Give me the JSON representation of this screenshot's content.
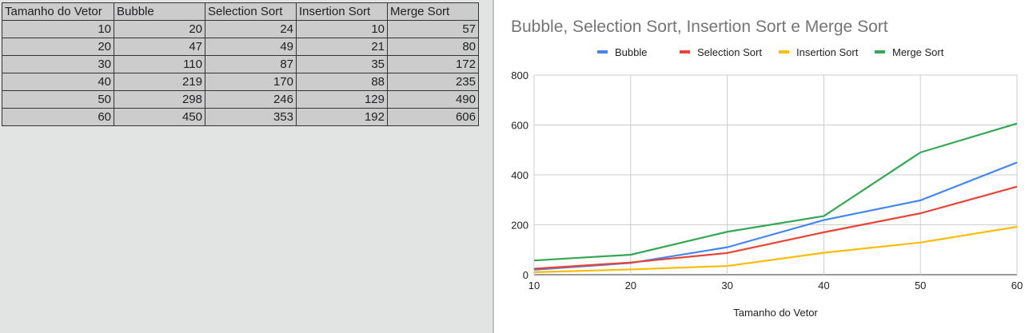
{
  "table": {
    "headers": [
      "Tamanho do Vetor",
      "Bubble",
      "Selection Sort",
      "Insertion Sort",
      "Merge Sort"
    ],
    "rows": [
      [
        "10",
        "20",
        "24",
        "10",
        "57"
      ],
      [
        "20",
        "47",
        "49",
        "21",
        "80"
      ],
      [
        "30",
        "110",
        "87",
        "35",
        "172"
      ],
      [
        "40",
        "219",
        "170",
        "88",
        "235"
      ],
      [
        "50",
        "298",
        "246",
        "129",
        "490"
      ],
      [
        "60",
        "450",
        "353",
        "192",
        "606"
      ]
    ]
  },
  "chart_data": {
    "type": "line",
    "title": "Bubble, Selection Sort, Insertion Sort e Merge Sort",
    "xlabel": "Tamanho do Vetor",
    "ylabel": "",
    "x": [
      10,
      20,
      30,
      40,
      50,
      60
    ],
    "xlim": [
      10,
      60
    ],
    "ylim": [
      0,
      800
    ],
    "x_ticks": [
      "10",
      "20",
      "30",
      "40",
      "50",
      "60"
    ],
    "y_ticks": [
      "0",
      "200",
      "400",
      "600",
      "800"
    ],
    "grid": true,
    "legend_position": "top",
    "series": [
      {
        "name": "Bubble",
        "color": "#4285f4",
        "values": [
          20,
          47,
          110,
          219,
          298,
          450
        ]
      },
      {
        "name": "Selection Sort",
        "color": "#ea4335",
        "values": [
          24,
          49,
          87,
          170,
          246,
          353
        ]
      },
      {
        "name": "Insertion Sort",
        "color": "#fbbc04",
        "values": [
          10,
          21,
          35,
          88,
          129,
          192
        ]
      },
      {
        "name": "Merge Sort",
        "color": "#34a853",
        "values": [
          57,
          80,
          172,
          235,
          490,
          606
        ]
      }
    ]
  }
}
